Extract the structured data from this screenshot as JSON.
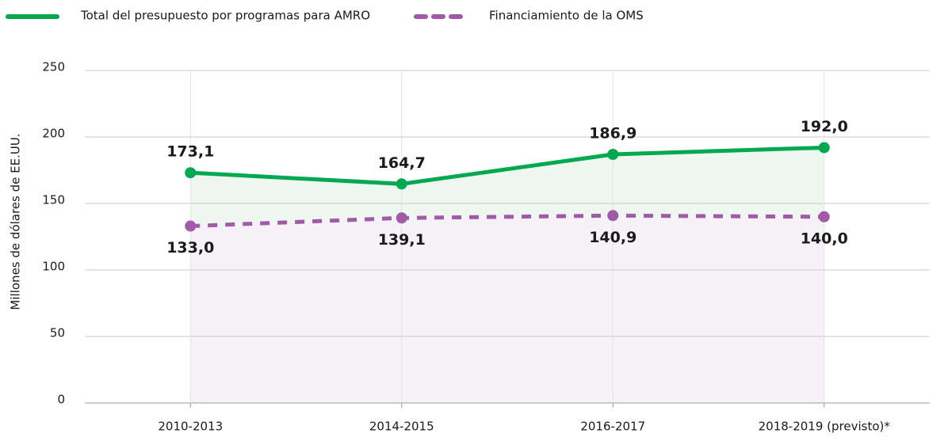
{
  "chart_data": {
    "type": "line",
    "y_label": "Millones de dólares de EE.UU.",
    "categories": [
      "2010-2013",
      "2014-2015",
      "2016-2017",
      "2018-2019 (previsto)*"
    ],
    "series": [
      {
        "name": "Total del presupuesto por programas para AMRO",
        "color": "#00a94f",
        "fill": "#eef8f0",
        "line_style": "solid",
        "label_position": "above",
        "values": [
          173.1,
          164.7,
          186.9,
          192.0
        ],
        "value_labels": [
          "173,1",
          "164,7",
          "186,9",
          "192,0"
        ]
      },
      {
        "name": "Financiamiento de la OMS",
        "color": "#a05aa8",
        "fill": "#f6f2f8",
        "line_style": "dashed",
        "label_position": "below",
        "values": [
          133.0,
          139.1,
          140.9,
          140.0
        ],
        "value_labels": [
          "133,0",
          "139,1",
          "140,9",
          "140,0"
        ]
      }
    ],
    "ylim": [
      0,
      250
    ],
    "yticks": [
      0,
      50,
      100,
      150,
      200,
      250
    ],
    "grid": true,
    "legend": "top-left"
  }
}
